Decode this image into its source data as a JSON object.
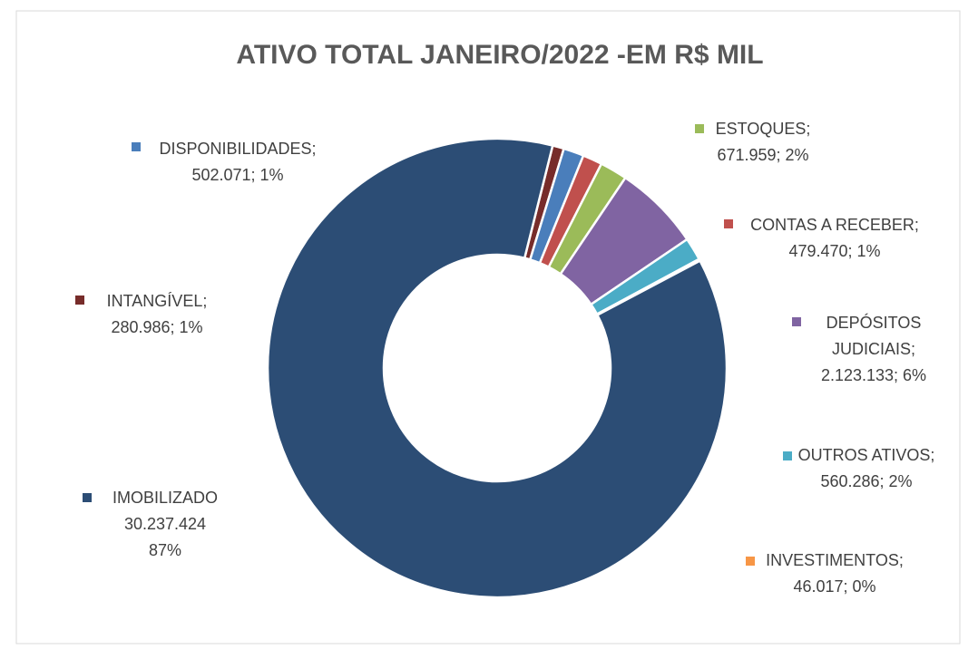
{
  "chart_data": {
    "type": "donut",
    "title": "ATIVO TOTAL JANEIRO/2022 -EM R$ MIL",
    "categories": [
      "INTANGÍVEL;",
      "DISPONIBILIDADES;",
      "CONTAS A RECEBER;",
      "ESTOQUES;",
      "DEPÓSITOS JUDICIAIS;",
      "OUTROS ATIVOS;",
      "INVESTIMENTOS;",
      "IMOBILIZADO"
    ],
    "values": [
      280986,
      502071,
      479470,
      671959,
      2123133,
      560286,
      46017,
      30237424
    ],
    "value_labels": [
      "280.986; 1%",
      "502.071; 1%",
      "479.470; 1%",
      "671.959; 2%",
      "2.123.133; 6%",
      "560.286; 2%",
      "46.017; 0%",
      "30.237.424 87%"
    ],
    "colors": [
      "#772c2a",
      "#4a7ebb",
      "#c0504d",
      "#9bbb59",
      "#8064a2",
      "#4bacc6",
      "#f79646",
      "#2c4d75"
    ]
  }
}
